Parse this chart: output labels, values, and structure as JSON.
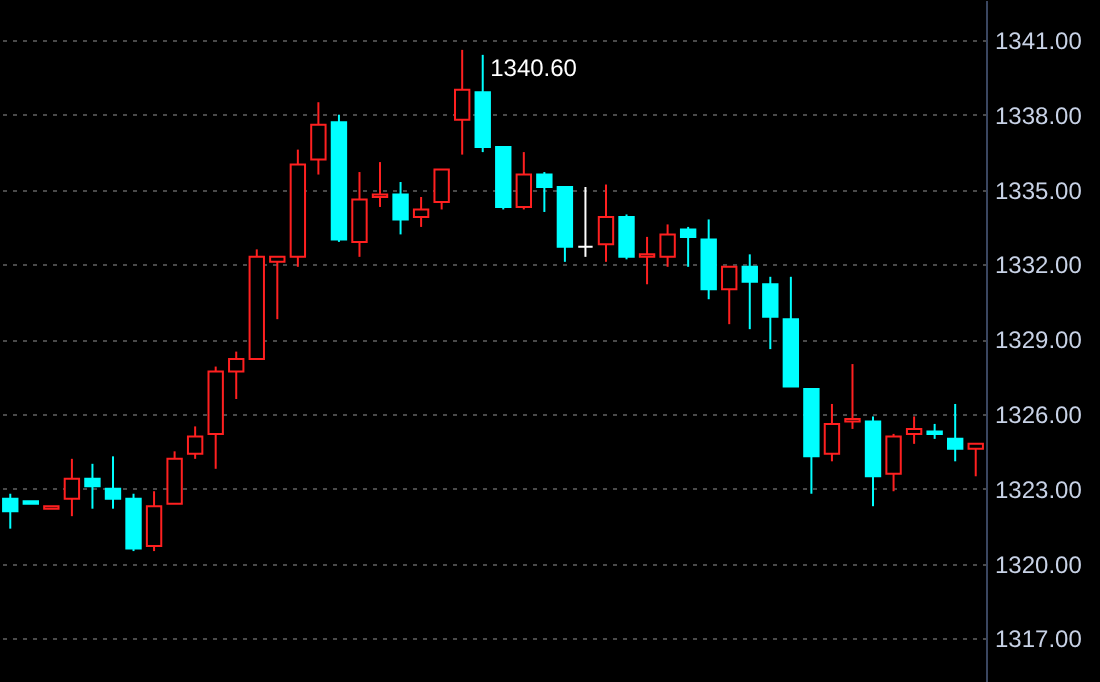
{
  "chart_data": {
    "type": "candlestick",
    "categories": [
      null,
      null,
      null,
      null,
      null,
      null,
      null,
      null,
      null,
      null,
      null,
      null,
      null,
      null,
      null,
      null,
      null,
      null,
      null,
      null,
      null,
      null,
      null,
      null,
      null,
      null,
      null,
      null,
      null,
      null,
      null,
      null,
      null,
      null,
      null,
      null,
      null,
      null,
      null,
      null,
      null,
      null,
      null,
      null,
      null,
      null,
      null,
      null
    ],
    "ohlc": [
      [
        1322.6,
        1322.8,
        1321.4,
        1322.1
      ],
      [
        1322.5,
        1322.5,
        1322.4,
        1322.4
      ],
      [
        1322.2,
        1322.3,
        1322.2,
        1322.3
      ],
      [
        1322.6,
        1324.2,
        1321.9,
        1323.4
      ],
      [
        1323.4,
        1324.0,
        1322.2,
        1323.1
      ],
      [
        1323.0,
        1324.3,
        1322.2,
        1322.6
      ],
      [
        1322.6,
        1322.8,
        1320.5,
        1320.6
      ],
      [
        1320.7,
        1322.9,
        1320.5,
        1322.3
      ],
      [
        1322.4,
        1324.5,
        1322.4,
        1324.2
      ],
      [
        1324.4,
        1325.5,
        1324.2,
        1325.1
      ],
      [
        1325.2,
        1327.9,
        1323.8,
        1327.7
      ],
      [
        1327.7,
        1328.5,
        1326.6,
        1328.2
      ],
      [
        1328.2,
        1332.6,
        1328.2,
        1332.3
      ],
      [
        1332.1,
        1332.3,
        1329.8,
        1332.3
      ],
      [
        1332.3,
        1336.6,
        1331.9,
        1336.0
      ],
      [
        1336.2,
        1338.5,
        1335.6,
        1337.6
      ],
      [
        1337.7,
        1338.0,
        1332.9,
        1333.0
      ],
      [
        1332.9,
        1335.7,
        1332.3,
        1334.6
      ],
      [
        1334.7,
        1336.1,
        1334.3,
        1334.8
      ],
      [
        1334.8,
        1335.3,
        1333.2,
        1333.8
      ],
      [
        1333.9,
        1334.7,
        1333.5,
        1334.2
      ],
      [
        1334.5,
        1335.8,
        1334.2,
        1335.8
      ],
      [
        1337.8,
        1340.6,
        1336.4,
        1339.0
      ],
      [
        1338.9,
        1340.4,
        1336.5,
        1336.7
      ],
      [
        1336.7,
        1336.7,
        1334.2,
        1334.3
      ],
      [
        1334.3,
        1336.5,
        1334.2,
        1335.6
      ],
      [
        1335.6,
        1335.7,
        1334.1,
        1335.1
      ],
      [
        1335.1,
        1335.1,
        1332.1,
        1332.7
      ],
      [
        1332.7,
        1335.1,
        1332.3,
        1332.7
      ],
      [
        1332.8,
        1335.2,
        1332.1,
        1333.9
      ],
      [
        1333.9,
        1334.0,
        1332.2,
        1332.3
      ],
      [
        1332.3,
        1333.1,
        1331.2,
        1332.4
      ],
      [
        1332.3,
        1333.6,
        1331.9,
        1333.2
      ],
      [
        1333.4,
        1333.5,
        1331.9,
        1333.1
      ],
      [
        1333.0,
        1333.8,
        1330.6,
        1331.0
      ],
      [
        1331.0,
        1331.9,
        1329.6,
        1331.9
      ],
      [
        1331.9,
        1332.4,
        1329.4,
        1331.3
      ],
      [
        1331.2,
        1331.5,
        1328.6,
        1329.9
      ],
      [
        1329.8,
        1331.5,
        1327.1,
        1327.1
      ],
      [
        1327.0,
        1327.0,
        1322.8,
        1324.3
      ],
      [
        1324.4,
        1326.4,
        1324.1,
        1325.6
      ],
      [
        1325.7,
        1328.0,
        1325.4,
        1325.8
      ],
      [
        1325.7,
        1325.9,
        1322.3,
        1323.5
      ],
      [
        1323.6,
        1325.2,
        1322.9,
        1325.1
      ],
      [
        1325.2,
        1325.9,
        1324.8,
        1325.4
      ],
      [
        1325.3,
        1325.6,
        1325.0,
        1325.2
      ],
      [
        1325.0,
        1326.4,
        1324.1,
        1324.6
      ],
      [
        1324.6,
        1324.8,
        1323.5,
        1324.8
      ]
    ],
    "colors": [
      "#00ffff",
      "#00ffff",
      "#ff2020",
      "#ff2020",
      "#00ffff",
      "#00ffff",
      "#00ffff",
      "#ff2020",
      "#ff2020",
      "#ff2020",
      "#ff2020",
      "#ff2020",
      "#ff2020",
      "#ff2020",
      "#ff2020",
      "#ff2020",
      "#00ffff",
      "#ff2020",
      "#ff2020",
      "#00ffff",
      "#ff2020",
      "#ff2020",
      "#ff2020",
      "#00ffff",
      "#00ffff",
      "#ff2020",
      "#00ffff",
      "#00ffff",
      "#ffffff",
      "#ff2020",
      "#00ffff",
      "#ff2020",
      "#ff2020",
      "#00ffff",
      "#00ffff",
      "#ff2020",
      "#00ffff",
      "#00ffff",
      "#00ffff",
      "#00ffff",
      "#ff2020",
      "#ff2020",
      "#00ffff",
      "#ff2020",
      "#ff2020",
      "#00ffff",
      "#00ffff",
      "#ff2020"
    ],
    "ylim": [
      1315.25,
      1342.6
    ],
    "yticks": [
      {
        "value": 1317,
        "label": "1317.00"
      },
      {
        "value": 1320,
        "label": "1320.00"
      },
      {
        "value": 1323,
        "label": "1323.00"
      },
      {
        "value": 1326,
        "label": "1326.00"
      },
      {
        "value": 1329,
        "label": "1329.00"
      },
      {
        "value": 1332,
        "label": "1332.00"
      },
      {
        "value": 1335,
        "label": "1335.00"
      },
      {
        "value": 1338,
        "label": "1338.00"
      },
      {
        "value": 1341,
        "label": "1341.00"
      }
    ],
    "grid": "y",
    "annotations": [
      "1340.60"
    ]
  }
}
